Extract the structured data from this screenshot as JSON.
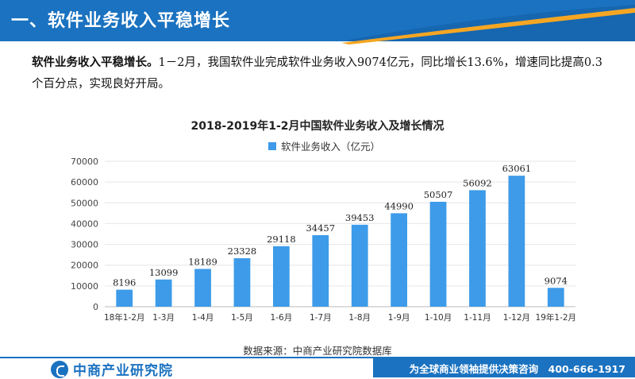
{
  "header": {
    "title": "一、软件业务收入平稳增长"
  },
  "intro": {
    "lead": "软件业务收入平稳增长。",
    "body": "1－2月，我国软件业完成软件业务收入9074亿元，同比增长13.6%，增速同比提高0.3个百分点，实现良好开局。"
  },
  "chart_data": {
    "type": "bar",
    "title": "2018-2019年1-2月中国软件业务收入及增长情况",
    "categories": [
      "18年1-2月",
      "1-3月",
      "1-4月",
      "1-5月",
      "1-6月",
      "1-7月",
      "1-8月",
      "1-9月",
      "1-10月",
      "1-11月",
      "1-12月",
      "19年1-2月"
    ],
    "series": [
      {
        "name": "软件业务收入（亿元）",
        "values": [
          8196,
          13099,
          18189,
          23328,
          29118,
          34457,
          39453,
          44990,
          50507,
          56092,
          63061,
          9074
        ],
        "color": "#3d9be9"
      }
    ],
    "yticks": [
      0,
      10000,
      20000,
      30000,
      40000,
      50000,
      60000,
      70000
    ],
    "ylim": [
      0,
      70000
    ],
    "grid": true,
    "legend_position": "top"
  },
  "source": "数据来源：中商产业研究院数据库",
  "footer": {
    "logo_text": "中商产业研究院",
    "slogan": "为全球商业领袖提供决策咨询　400-666-1917"
  },
  "colors": {
    "brand": "#1a72c0",
    "accent": "#f5a623",
    "bar": "#3d9be9"
  }
}
